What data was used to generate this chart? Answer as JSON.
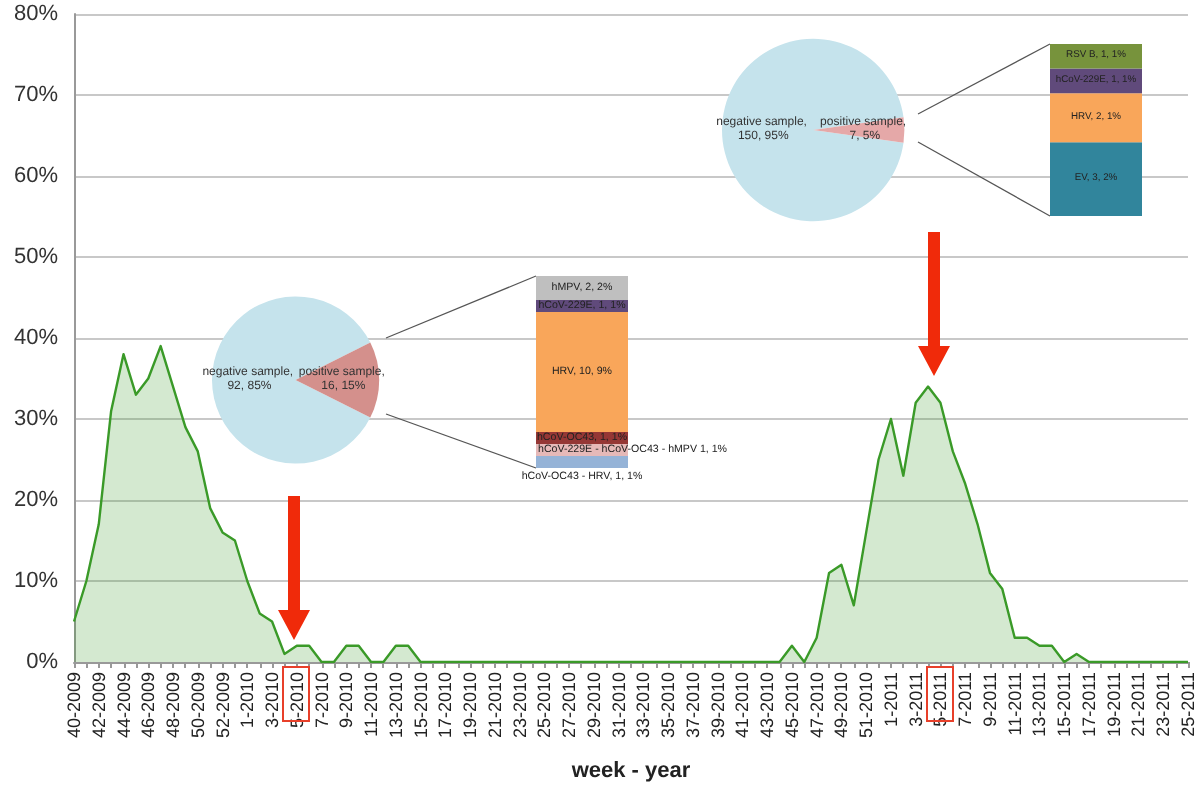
{
  "chart_data": [
    {
      "type": "area",
      "xlabel": "week - year",
      "categories": [
        "40-2009",
        null,
        "42-2009",
        null,
        "44-2009",
        null,
        "46-2009",
        null,
        "48-2009",
        null,
        "50-2009",
        null,
        "52-2009",
        null,
        "1-2010",
        null,
        "3-2010",
        null,
        "5-2010",
        null,
        "7-2010",
        null,
        "9-2010",
        null,
        "11-2010",
        null,
        "13-2010",
        null,
        "15-2010",
        null,
        "17-2010",
        null,
        "19-2010",
        null,
        "21-2010",
        null,
        "23-2010",
        null,
        "25-2010",
        null,
        "27-2010",
        null,
        "29-2010",
        null,
        "31-2010",
        null,
        "33-2010",
        null,
        "35-2010",
        null,
        "37-2010",
        null,
        "39-2010",
        null,
        "41-2010",
        null,
        "43-2010",
        null,
        "45-2010",
        null,
        "47-2010",
        null,
        "49-2010",
        null,
        "51-2010",
        null,
        "1-2011",
        null,
        "3-2011",
        null,
        "5-2011",
        null,
        "7-2011",
        null,
        "9-2011",
        null,
        "11-2011",
        null,
        "13-2011",
        null,
        "15-2011",
        null,
        "17-2011",
        null,
        "19-2011",
        null,
        "21-2011",
        null,
        "23-2011",
        null,
        "25-2011"
      ],
      "series": [
        {
          "color": "#3a9a28",
          "values": [
            5,
            10,
            17,
            31,
            38,
            33,
            35,
            39,
            34,
            29,
            26,
            19,
            16,
            15,
            10,
            6,
            5,
            1,
            2,
            2,
            0,
            0,
            2,
            2,
            0,
            0,
            2,
            2,
            0,
            0,
            0,
            0,
            0,
            0,
            0,
            0,
            0,
            0,
            0,
            0,
            0,
            0,
            0,
            0,
            0,
            0,
            0,
            0,
            0,
            0,
            0,
            0,
            0,
            0,
            0,
            0,
            0,
            0,
            2,
            0,
            3,
            11,
            12,
            7,
            16,
            25,
            30,
            23,
            32,
            34,
            32,
            26,
            22,
            17,
            11,
            9,
            3,
            3,
            2,
            2,
            0,
            1,
            0,
            0,
            0,
            0,
            0,
            0,
            0,
            0,
            0
          ]
        }
      ],
      "ylim": [
        0,
        80
      ],
      "yticks": [
        {
          "value": 0,
          "label": "0%"
        },
        {
          "value": 10,
          "label": "10%"
        },
        {
          "value": 20,
          "label": "20%"
        },
        {
          "value": 30,
          "label": "30%"
        },
        {
          "value": 40,
          "label": "40%"
        },
        {
          "value": 50,
          "label": "50%"
        },
        {
          "value": 60,
          "label": "60%"
        },
        {
          "value": 70,
          "label": "70%"
        },
        {
          "value": 80,
          "label": "80%"
        }
      ],
      "grid": "y",
      "marker": "none",
      "line_style": "solid"
    },
    {
      "type": "pie",
      "categories": [
        "negative sample, 92, 85%",
        "positive sample, 16, 15%"
      ],
      "values": [
        92,
        16
      ],
      "colors": [
        "#c5e3ec",
        "#d4908c"
      ]
    },
    {
      "type": "bar",
      "stacked": true,
      "categories": [
        null
      ],
      "series": [
        {
          "color": "#95b3d7",
          "values": [
            1
          ],
          "value_labels": [
            "hCoV-OC43 - HRV, 1, 1%"
          ]
        },
        {
          "color": "#e6b9b8",
          "values": [
            1
          ],
          "value_labels": [
            "hCoV-229E - hCoV-OC43 - hMPV 1, 1%"
          ]
        },
        {
          "color": "#953735",
          "values": [
            1
          ],
          "value_labels": [
            "hCoV-OC43, 1, 1%"
          ]
        },
        {
          "color": "#f9a65a",
          "values": [
            10
          ],
          "value_labels": [
            "HRV, 10, 9%"
          ]
        },
        {
          "color": "#604a7b",
          "values": [
            1
          ],
          "value_labels": [
            "hCoV-229E, 1, 1%"
          ]
        },
        {
          "color": "#bfbfbf",
          "values": [
            2
          ],
          "value_labels": [
            "hMPV, 2, 2%"
          ]
        }
      ]
    },
    {
      "type": "pie",
      "categories": [
        "negative sample, 150, 95%",
        "positive sample, 7, 5%"
      ],
      "values": [
        150,
        7
      ],
      "colors": [
        "#c5e3ec",
        "#e5a8a8"
      ]
    },
    {
      "type": "bar",
      "stacked": true,
      "categories": [
        null
      ],
      "series": [
        {
          "color": "#31859c",
          "values": [
            3
          ],
          "value_labels": [
            "EV, 3, 2%"
          ]
        },
        {
          "color": "#f9a65a",
          "values": [
            2
          ],
          "value_labels": [
            "HRV, 2, 1%"
          ]
        },
        {
          "color": "#604a7b",
          "values": [
            1
          ],
          "value_labels": [
            "hCoV-229E, 1, 1%"
          ]
        },
        {
          "color": "#77933c",
          "values": [
            1
          ],
          "value_labels": [
            "RSV B, 1, 1%"
          ]
        }
      ]
    }
  ]
}
